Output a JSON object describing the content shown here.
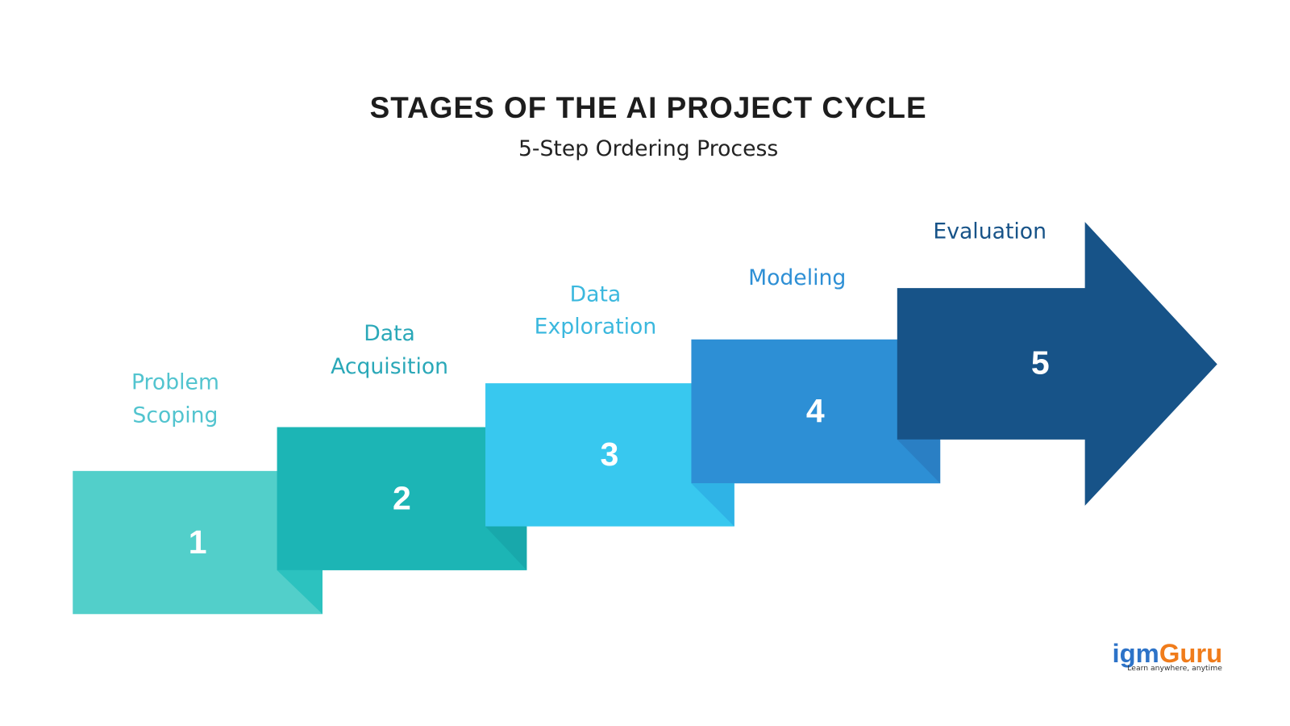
{
  "header": {
    "title": "STAGES OF THE AI PROJECT CYCLE",
    "subtitle": "5-Step Ordering Process"
  },
  "steps": [
    {
      "number": "1",
      "label": [
        "Problem",
        "Scoping"
      ]
    },
    {
      "number": "2",
      "label": [
        "Data",
        "Acquisition"
      ]
    },
    {
      "number": "3",
      "label": [
        "Data",
        "Exploration"
      ]
    },
    {
      "number": "4",
      "label": [
        "Modeling"
      ]
    },
    {
      "number": "5",
      "label": [
        "Evaluation"
      ]
    }
  ],
  "logo": {
    "brand": [
      "igm",
      "Guru"
    ],
    "tagline": "Learn anywhere, anytime"
  }
}
